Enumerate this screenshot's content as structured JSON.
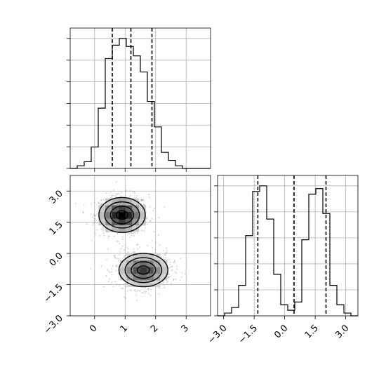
{
  "chart_data": [
    {
      "panel": "hist-param-0",
      "type": "histogram",
      "x_range": [
        -0.8,
        3.8
      ],
      "bins": [
        -0.8,
        -0.57,
        -0.34,
        -0.11,
        0.12,
        0.35,
        0.58,
        0.81,
        1.04,
        1.27,
        1.5,
        1.73,
        1.96,
        2.19,
        2.42,
        2.65,
        2.88,
        3.11,
        3.34,
        3.57,
        3.8
      ],
      "counts": [
        0,
        2,
        5,
        16,
        45,
        82,
        92,
        97,
        91,
        84,
        72,
        50,
        31,
        12,
        6,
        2,
        0,
        0,
        0,
        0
      ],
      "quantiles": [
        0.58,
        1.19,
        1.88
      ],
      "grid": true,
      "y_tick_count": 7
    },
    {
      "panel": "scatter-2d",
      "type": "scatter",
      "x_range": [
        -0.8,
        3.8
      ],
      "y_range": [
        -3.0,
        3.75
      ],
      "x_ticks": [
        "0",
        "1",
        "2",
        "3"
      ],
      "y_ticks": [
        "−3.0",
        "−1.5",
        "0.0",
        "1.5",
        "3.0"
      ],
      "clusters": [
        {
          "center": [
            0.9,
            1.85
          ],
          "sigma": [
            0.38,
            0.42
          ]
        },
        {
          "center": [
            1.6,
            -0.8
          ],
          "sigma": [
            0.4,
            0.4
          ]
        }
      ],
      "contour_levels_sigma": [
        0.5,
        1.0,
        1.5,
        2.0
      ],
      "grid": true
    },
    {
      "panel": "hist-param-1",
      "type": "histogram",
      "x_range": [
        -3.3,
        3.6
      ],
      "bins": [
        -3.3,
        -2.955,
        -2.61,
        -2.265,
        -1.92,
        -1.575,
        -1.23,
        -0.885,
        -0.54,
        -0.195,
        0.15,
        0.495,
        0.84,
        1.185,
        1.53,
        1.875,
        2.22,
        2.565,
        2.91,
        3.255,
        3.6
      ],
      "counts": [
        0,
        2,
        6,
        22,
        58,
        90,
        94,
        70,
        30,
        8,
        4,
        10,
        55,
        88,
        92,
        74,
        22,
        8,
        2,
        0
      ],
      "quantiles": [
        -1.32,
        0.46,
        2.03
      ],
      "x_ticks": [
        "−3.0",
        "−1.5",
        "0.0",
        "1.5",
        "3.0"
      ],
      "grid": true,
      "y_tick_count": 6
    }
  ]
}
